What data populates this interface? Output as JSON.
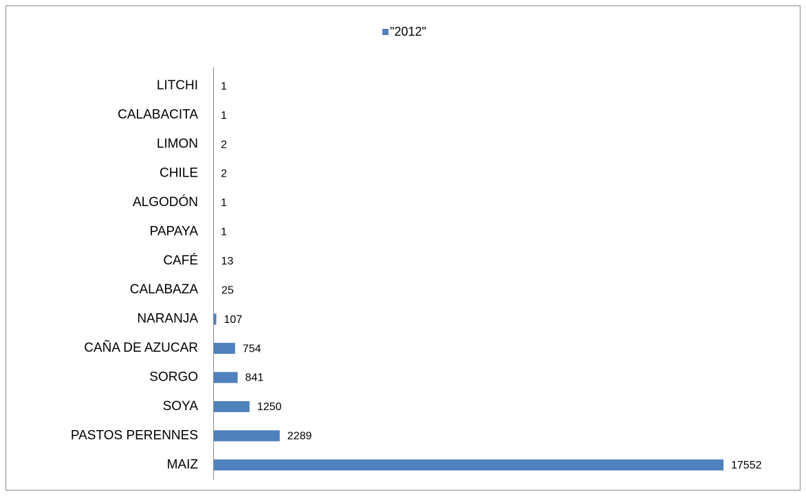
{
  "chart_data": {
    "type": "hbar",
    "categories": [
      "LITCHI",
      "CALABACITA",
      "LIMON",
      "CHILE",
      "ALGODÓN",
      "PAPAYA",
      "CAFÉ",
      "CALABAZA",
      "NARANJA",
      "CAÑA DE AZUCAR",
      "SORGO",
      "SOYA",
      "PASTOS PERENNES",
      "MAIZ"
    ],
    "series": [
      {
        "name": "\"2012\"",
        "color": "#4f81bd",
        "values": [
          1,
          1,
          2,
          2,
          1,
          1,
          13,
          25,
          107,
          754,
          841,
          1250,
          2289,
          17552
        ]
      }
    ],
    "legend": "top"
  }
}
